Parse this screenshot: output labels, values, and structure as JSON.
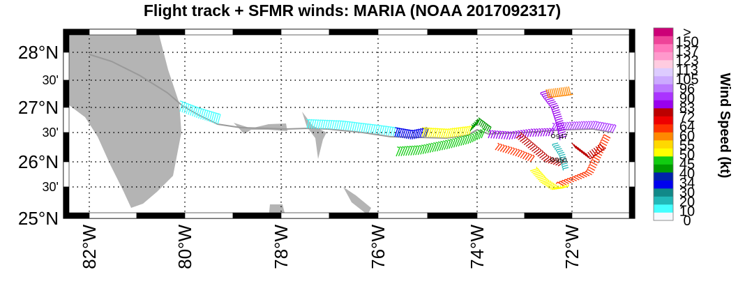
{
  "title": "Flight track + SFMR winds: MARIA (NOAA 2017092317)",
  "map": {
    "lon_range": [
      -82.5,
      -71.0
    ],
    "lat_range": [
      25.0,
      28.5
    ],
    "land_color": "#b4b4b4",
    "track_color": "#999999",
    "grid": "dotted",
    "lat_labels": [
      "28°N",
      "30'",
      "27°N",
      "30'",
      "26°N",
      "30'",
      "25°N"
    ],
    "lon_labels": [
      "82°W",
      "80°W",
      "78°W",
      "76°W",
      "74°W",
      "72°W"
    ],
    "annotations": [
      "947",
      "950"
    ]
  },
  "colorbar": {
    "label": "Wind Speed (kt)",
    "ticks": [
      "0",
      "10",
      "20",
      "30",
      "34",
      "40",
      "45",
      "50",
      "55",
      "60",
      "64",
      "72",
      "83",
      "90",
      "96",
      "105",
      "113",
      "123",
      "137",
      "150",
      ">"
    ],
    "colors": [
      "#f4f8fc",
      "#44ffff",
      "#22b8b8",
      "#118888",
      "#0000ee",
      "#0022aa",
      "#009a00",
      "#11cc11",
      "#ffff00",
      "#ffd800",
      "#ff8800",
      "#ff3300",
      "#ee0000",
      "#bb0000",
      "#9900ee",
      "#aa33ff",
      "#bb77ff",
      "#ccaaff",
      "#ddccff",
      "#ffcce0",
      "#ff99cc",
      "#ff77bb",
      "#ee4499",
      "#cc0077"
    ]
  }
}
